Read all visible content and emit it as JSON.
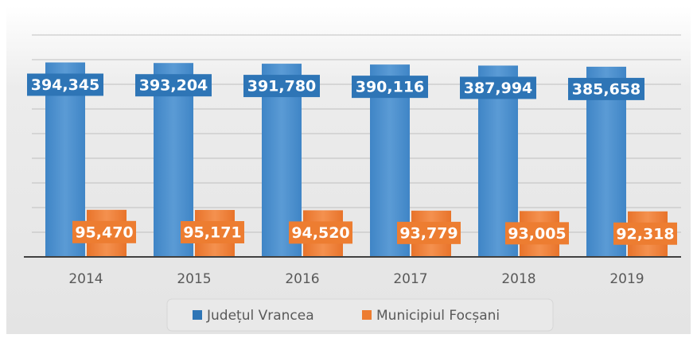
{
  "chart_data": {
    "type": "bar",
    "categories": [
      "2014",
      "2015",
      "2016",
      "2017",
      "2018",
      "2019"
    ],
    "series": [
      {
        "name": "Județul Vrancea",
        "color": "#2e75b6",
        "values": [
          394345,
          393204,
          391780,
          390116,
          387994,
          385658
        ],
        "value_labels": [
          "394,345",
          "393,204",
          "391,780",
          "390,116",
          "387,994",
          "385,658"
        ]
      },
      {
        "name": "Municipiul Focșani",
        "color": "#ed7d31",
        "values": [
          95470,
          95171,
          94520,
          93779,
          93005,
          92318
        ],
        "value_labels": [
          "95,470",
          "95,171",
          "94,520",
          "93,779",
          "93,005",
          "92,318"
        ]
      }
    ],
    "ylim": [
      0,
      450000
    ],
    "yticks": [
      0,
      50000,
      100000,
      150000,
      200000,
      250000,
      300000,
      350000,
      400000,
      450000
    ],
    "grid": true,
    "legend": "bottom"
  }
}
